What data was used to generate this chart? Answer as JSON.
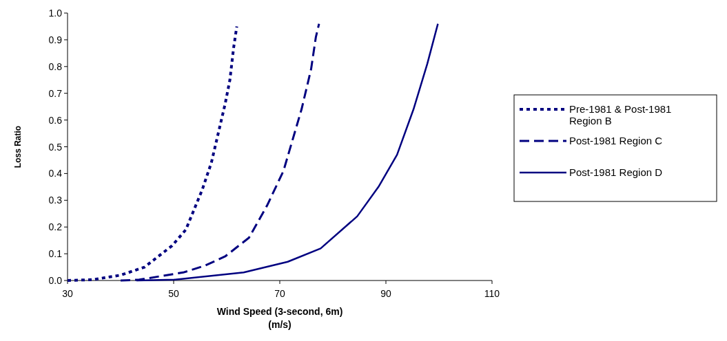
{
  "chart_data": {
    "type": "line",
    "xlabel": "Wind Speed (3-second, 6m)\n(m/s)",
    "ylabel": "Loss Ratio",
    "xlim": [
      30,
      110
    ],
    "xticks": [
      30,
      50,
      70,
      90,
      110
    ],
    "ylim": [
      0,
      1
    ],
    "yticks": [
      {
        "value": 0,
        "label": "0.0"
      },
      {
        "value": 0.1,
        "label": "0.1"
      },
      {
        "value": 0.2,
        "label": "0.2"
      },
      {
        "value": 0.3,
        "label": "0.3"
      },
      {
        "value": 0.4,
        "label": "0.4"
      },
      {
        "value": 0.5,
        "label": "0.5"
      },
      {
        "value": 0.6,
        "label": "0.6"
      },
      {
        "value": 0.7,
        "label": "0.7"
      },
      {
        "value": 0.8,
        "label": "0.8"
      },
      {
        "value": 0.9,
        "label": "0.9"
      },
      {
        "value": 1,
        "label": "1.0"
      }
    ],
    "grid": false,
    "legend": "right",
    "marker": "none",
    "series": [
      {
        "name": "Pre-1981 & Post-1981 Region B",
        "color": "#000080",
        "line_style": "dotted",
        "x": [
          30,
          34.7,
          40,
          44.5,
          49.7,
          52.3,
          55.4,
          57.1,
          58.4,
          59.7,
          60.6,
          61.3,
          61.9
        ],
        "values": [
          0,
          0.003,
          0.02,
          0.05,
          0.13,
          0.19,
          0.34,
          0.44,
          0.55,
          0.66,
          0.75,
          0.87,
          0.95
        ]
      },
      {
        "name": "Post-1981 Region C",
        "color": "#000080",
        "line_style": "dashed",
        "x": [
          40,
          43.5,
          51.8,
          55.8,
          59.7,
          64.2,
          67.6,
          70.7,
          74.1,
          75.9,
          76.8,
          77.4
        ],
        "values": [
          0,
          0.003,
          0.03,
          0.055,
          0.09,
          0.16,
          0.28,
          0.41,
          0.64,
          0.79,
          0.91,
          0.96
        ]
      },
      {
        "name": "Post-1981 Region D",
        "color": "#000080",
        "line_style": "solid",
        "x": [
          43,
          50.1,
          63.2,
          71.5,
          77.7,
          84.6,
          88.6,
          92.1,
          95.2,
          97.8,
          99.8
        ],
        "values": [
          0,
          0.003,
          0.03,
          0.07,
          0.12,
          0.24,
          0.35,
          0.47,
          0.64,
          0.81,
          0.96
        ]
      }
    ]
  }
}
